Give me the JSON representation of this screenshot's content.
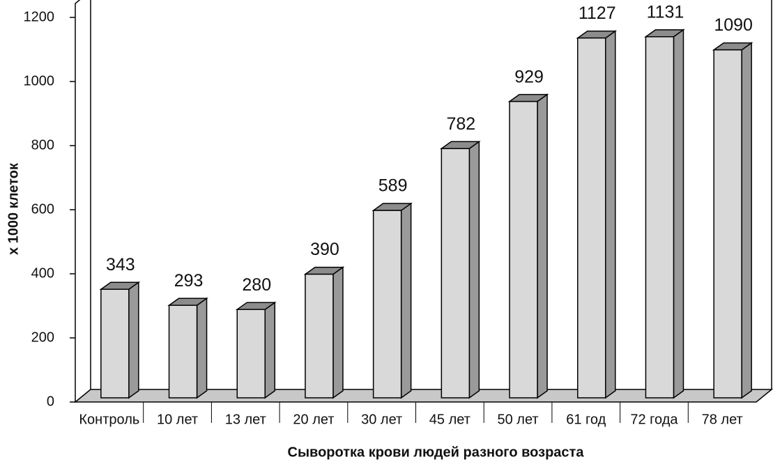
{
  "chart_data": {
    "type": "bar3d",
    "y_label": "х 1000 клеток",
    "x_label": "Сыворотка крови людей разного возраста",
    "categories": [
      "Контроль",
      "10 лет",
      "13 лет",
      "20 лет",
      "30 лет",
      "45 лет",
      "50 лет",
      "61 год",
      "72 года",
      "78 лет"
    ],
    "values": [
      343,
      293,
      280,
      390,
      589,
      782,
      929,
      1127,
      1131,
      1090
    ],
    "color": "#d9d9d9",
    "ylim": [
      0,
      1200
    ],
    "yticks": [
      0,
      200,
      400,
      600,
      800,
      1000,
      1200
    ]
  }
}
